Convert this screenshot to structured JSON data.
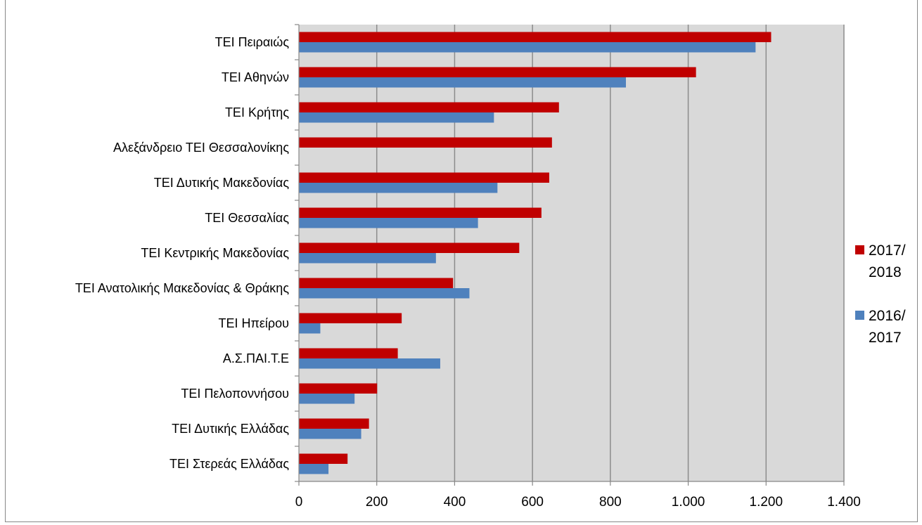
{
  "chart_data": {
    "type": "bar",
    "orientation": "horizontal",
    "categories": [
      "ΤΕΙ Πειραιώς",
      "ΤΕΙ Αθηνών",
      "ΤΕΙ Κρήτης",
      "Αλεξάνδρειο ΤΕΙ Θεσσαλονίκης",
      "ΤΕΙ Δυτικής Μακεδονίας",
      "ΤΕΙ Θεσσαλίας",
      "ΤΕΙ Κεντρικής Μακεδονίας",
      "ΤΕΙ Ανατολικής Μακεδονίας & Θράκης",
      "ΤΕΙ Ηπείρου",
      "Α.Σ.ΠΑΙ.Τ.Ε",
      "ΤΕΙ Πελοποννήσου",
      "ΤΕΙ Δυτικής Ελλάδας",
      "ΤΕΙ Στερεάς Ελλάδας"
    ],
    "series": [
      {
        "name": "2017/2018",
        "legend_lines": [
          "2017/",
          "2018"
        ],
        "color": "#c00000",
        "values": [
          1213,
          1020,
          668,
          650,
          643,
          623,
          566,
          396,
          264,
          254,
          201,
          180,
          125
        ]
      },
      {
        "name": "2016/2017",
        "legend_lines": [
          "2016/",
          "2017"
        ],
        "color": "#4f81bd",
        "values": [
          1173,
          840,
          501,
          0,
          510,
          460,
          352,
          438,
          55,
          363,
          143,
          160,
          76
        ]
      }
    ],
    "xlim": [
      0,
      1400
    ],
    "x_ticks": [
      0,
      200,
      400,
      600,
      800,
      1000,
      1200,
      1400
    ],
    "x_tick_labels": [
      "0",
      "200",
      "400",
      "600",
      "800",
      "1.000",
      "1.200",
      "1.400"
    ],
    "grid": "vertical",
    "legend_position": "right",
    "plot_background": "#d9d9d9",
    "gridline_color": "#8c8c8c"
  }
}
